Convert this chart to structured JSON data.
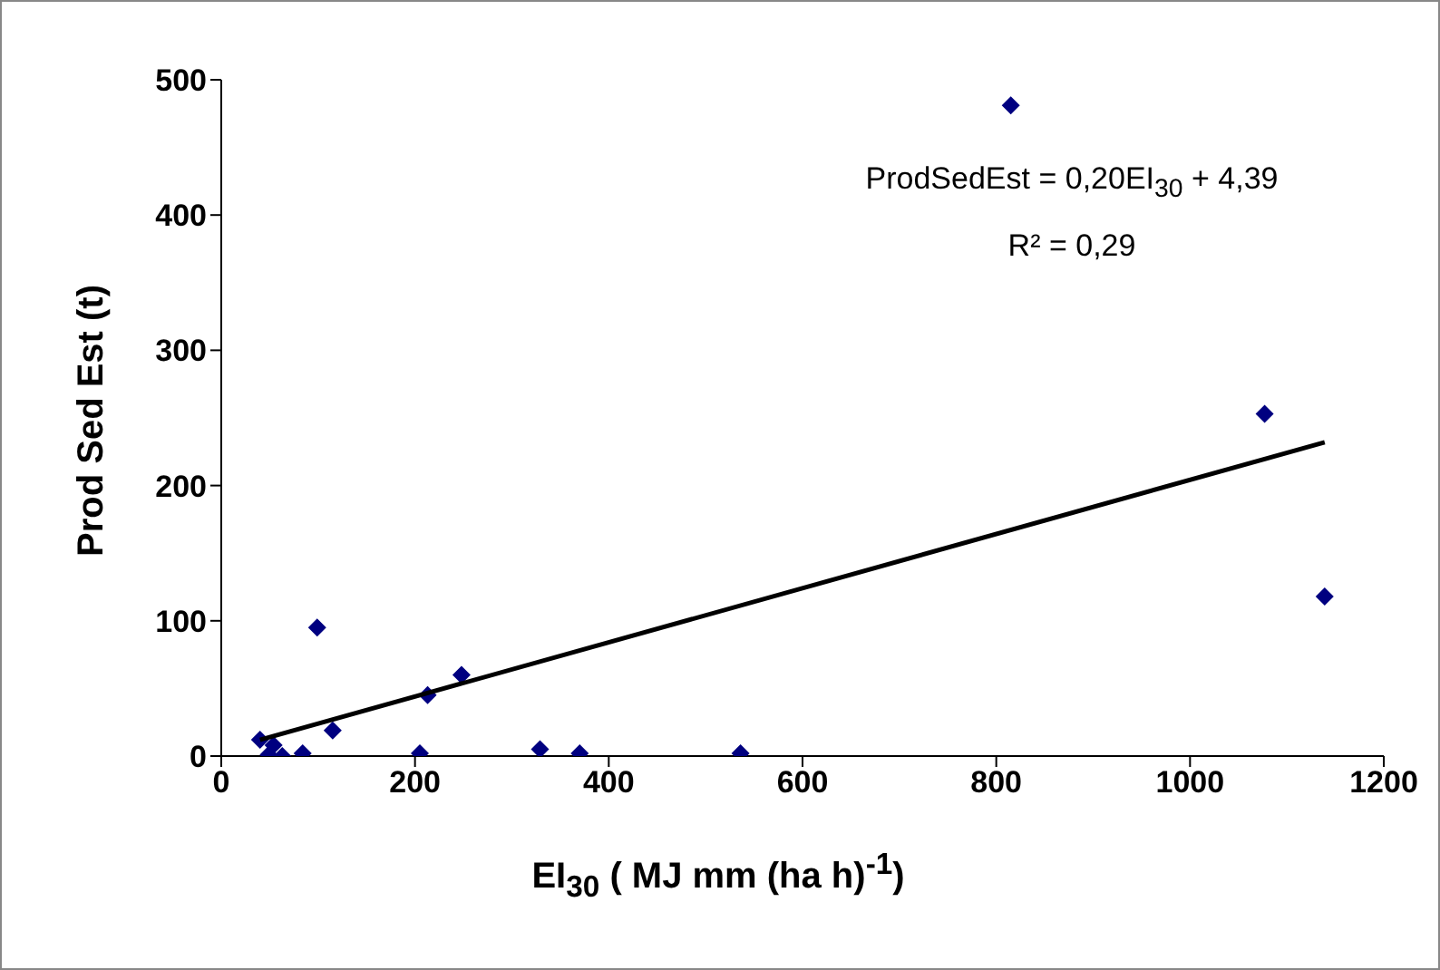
{
  "chart_data": {
    "type": "scatter",
    "xlabel": "EI$_{30}$ ( MJ mm (ha h)$^{-1}$)",
    "ylabel": "Prod Sed Est (t)",
    "xlim": [
      0,
      1200
    ],
    "xticks": [
      0,
      200,
      400,
      600,
      800,
      1000,
      1200
    ],
    "ylim": [
      0,
      500
    ],
    "yticks": [
      0,
      100,
      200,
      300,
      400,
      500
    ],
    "marker": "diamond",
    "series": [
      {
        "color": "#000080",
        "x": [
          40,
          49,
          54,
          63,
          84,
          99,
          115,
          205,
          213,
          248,
          329,
          370,
          536,
          815,
          1077,
          1139
        ],
        "values": [
          12,
          1,
          8,
          0,
          2,
          95,
          19,
          2,
          45,
          60,
          5,
          2,
          2,
          481,
          253,
          118
        ]
      },
      {
        "type": "line",
        "color": "#000000",
        "marker": "none",
        "x": [
          40,
          1139
        ],
        "values": [
          12,
          232
        ]
      }
    ],
    "annotations": [
      "ProdSedEst = 0,20EI$_{30}$ + 4,39",
      "R² = 0,29"
    ]
  }
}
